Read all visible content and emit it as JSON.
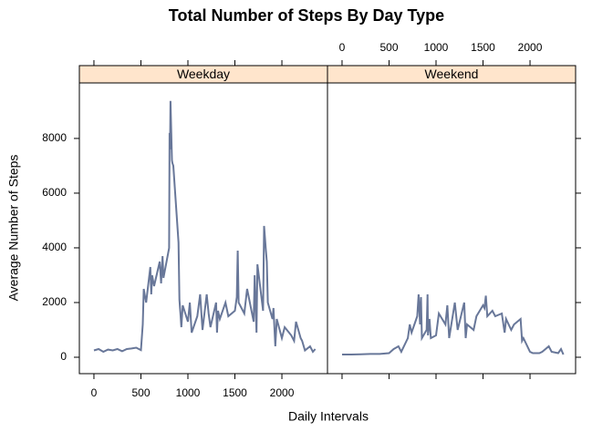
{
  "chart_data": {
    "type": "line",
    "title": "Total Number of Steps By Day Type",
    "xlabel": "Daily Intervals",
    "ylabel": "Average Number of Steps",
    "color": "#687799",
    "strip_color": "#ffe5cc",
    "xlim": [
      -155,
      2485
    ],
    "xticks": [
      0,
      500,
      1000,
      1500,
      2000
    ],
    "ylim": [
      -600,
      10030
    ],
    "yticks": [
      0,
      2000,
      4000,
      6000,
      8000
    ],
    "panels": [
      {
        "name": "Weekday",
        "x": [
          0,
          50,
          100,
          150,
          200,
          250,
          300,
          350,
          400,
          450,
          500,
          520,
          530,
          545,
          555,
          600,
          610,
          620,
          640,
          700,
          715,
          730,
          740,
          800,
          805,
          810,
          815,
          830,
          835,
          845,
          900,
          910,
          920,
          930,
          945,
          1000,
          1020,
          1040,
          1100,
          1130,
          1155,
          1200,
          1220,
          1240,
          1300,
          1310,
          1320,
          1340,
          1400,
          1430,
          1500,
          1520,
          1530,
          1540,
          1600,
          1630,
          1700,
          1710,
          1730,
          1740,
          1800,
          1810,
          1830,
          1840,
          1850,
          1900,
          1910,
          1930,
          1945,
          2000,
          2030,
          2100,
          2130,
          2150,
          2200,
          2215,
          2245,
          2300,
          2330,
          2355
        ],
        "values": [
          250,
          300,
          200,
          280,
          250,
          300,
          220,
          300,
          320,
          350,
          260,
          1200,
          2500,
          2200,
          2000,
          3300,
          2300,
          3000,
          2600,
          3500,
          2700,
          3700,
          2900,
          4000,
          8200,
          7600,
          9370,
          7200,
          7100,
          7000,
          4200,
          2100,
          1600,
          1100,
          1900,
          1300,
          2000,
          900,
          1500,
          2300,
          1000,
          2300,
          1600,
          1100,
          2000,
          900,
          1700,
          1400,
          2000,
          1500,
          1700,
          2200,
          3900,
          2000,
          1600,
          2500,
          1300,
          3000,
          900,
          3400,
          1700,
          4800,
          3900,
          3500,
          2000,
          1400,
          1800,
          400,
          1400,
          700,
          1100,
          800,
          600,
          1300,
          700,
          600,
          250,
          400,
          200,
          300
        ]
      },
      {
        "name": "Weekend",
        "x": [
          0,
          100,
          200,
          300,
          400,
          500,
          550,
          600,
          630,
          700,
          720,
          740,
          800,
          815,
          830,
          840,
          850,
          900,
          910,
          915,
          930,
          945,
          1000,
          1030,
          1100,
          1120,
          1140,
          1200,
          1230,
          1300,
          1315,
          1330,
          1400,
          1430,
          1500,
          1515,
          1530,
          1545,
          1600,
          1630,
          1700,
          1730,
          1745,
          1800,
          1830,
          1900,
          1915,
          1930,
          2000,
          2030,
          2100,
          2130,
          2200,
          2230,
          2300,
          2330,
          2355
        ],
        "values": [
          100,
          100,
          110,
          120,
          120,
          150,
          300,
          400,
          200,
          700,
          1200,
          900,
          1500,
          2300,
          1200,
          2200,
          700,
          1000,
          2300,
          800,
          1400,
          700,
          800,
          1600,
          1200,
          1900,
          700,
          2000,
          1000,
          2000,
          700,
          1200,
          1000,
          1500,
          1900,
          1800,
          2250,
          1500,
          1700,
          1500,
          1600,
          900,
          1400,
          1000,
          1200,
          1400,
          600,
          700,
          200,
          150,
          150,
          200,
          400,
          200,
          150,
          300,
          100
        ]
      }
    ]
  }
}
